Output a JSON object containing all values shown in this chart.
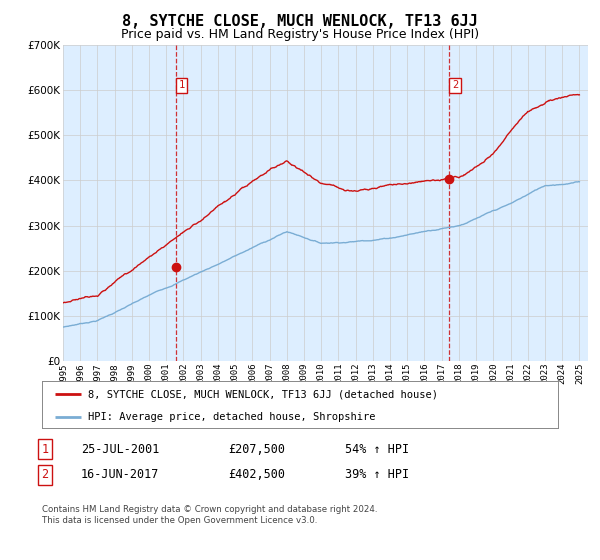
{
  "title": "8, SYTCHE CLOSE, MUCH WENLOCK, TF13 6JJ",
  "subtitle": "Price paid vs. HM Land Registry's House Price Index (HPI)",
  "ylim": [
    0,
    700000
  ],
  "yticks": [
    0,
    100000,
    200000,
    300000,
    400000,
    500000,
    600000,
    700000
  ],
  "ytick_labels": [
    "£0",
    "£100K",
    "£200K",
    "£300K",
    "£400K",
    "£500K",
    "£600K",
    "£700K"
  ],
  "hpi_color": "#7aadd4",
  "price_color": "#cc1111",
  "vline_color": "#cc1111",
  "chart_bg": "#ddeeff",
  "sale1_date": 2001.56,
  "sale1_price": 207500,
  "sale1_label": "1",
  "sale2_date": 2017.45,
  "sale2_price": 402500,
  "sale2_label": "2",
  "legend_house_label": "8, SYTCHE CLOSE, MUCH WENLOCK, TF13 6JJ (detached house)",
  "legend_hpi_label": "HPI: Average price, detached house, Shropshire",
  "table_row1": [
    "1",
    "25-JUL-2001",
    "£207,500",
    "54% ↑ HPI"
  ],
  "table_row2": [
    "2",
    "16-JUN-2017",
    "£402,500",
    "39% ↑ HPI"
  ],
  "footnote": "Contains HM Land Registry data © Crown copyright and database right 2024.\nThis data is licensed under the Open Government Licence v3.0.",
  "background_color": "#ffffff",
  "grid_color": "#cccccc",
  "title_fontsize": 11,
  "subtitle_fontsize": 9
}
